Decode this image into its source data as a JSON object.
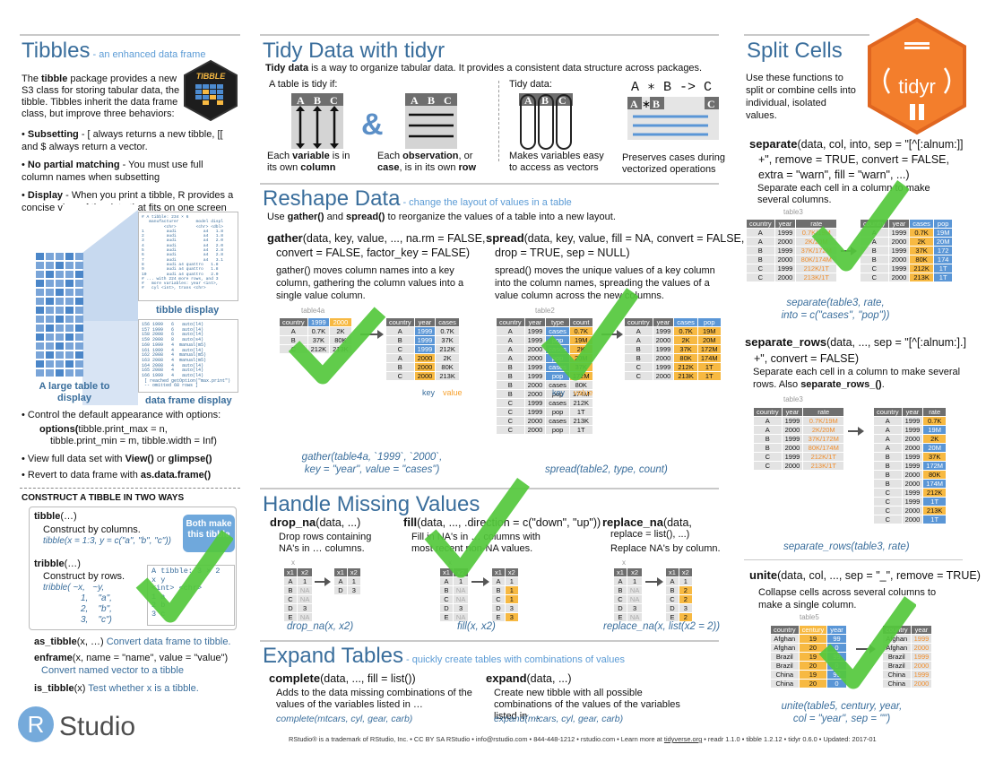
{
  "tibbles": {
    "title": "Tibbles",
    "subtitle": "- an enhanced data frame",
    "intro_a": "The ",
    "intro_b": "tibble",
    "intro_c": " package provides a new S3 class for storing tabular data, the tibble. Tibbles inherit the data frame class, but improve three behaviors:",
    "logo_text": "TIBBLE",
    "b1_head": "Subsetting",
    "b1_text": " - [ always returns a new tibble, [[ and $ always return a vector.",
    "b2_head": "No partial matching",
    "b2_text": " - You must use full column names when subsetting",
    "b3_head": "Display",
    "b3_text": " - When you print a tibble, R provides a concise view of the data that fits on one screen",
    "large_table": "A large table to display",
    "tibble_display": "tibble display",
    "df_display": "data frame display",
    "tibble_print": "# A tibble: 234 × 6\n   manufacturer       model displ\n         <chr>        <chr> <dbl>\n1         audi           a4   1.8\n2         audi           a4   1.8\n3         audi           a4   2.0\n4         audi           a4   2.0\n5         audi           a4   2.8\n6         audi           a4   2.8\n7         audi           a4   3.1\n8         audi a4 quattro   1.8\n9         audi a4 quattro   1.8\n10        audi a4 quattro   2.0\n# ... with 224 more rows, and 3\n#   more variables: year <int>,\n#   cyl <int>, trans <chr>",
    "df_print": "156 1999   6   auto(l4)\n157 1999   6   auto(l4)\n158 2008   6   auto(l4)\n159 2008   8   auto(s4)\n160 1999   4  manual(m5)\n161 1999   4   auto(l4)\n162 2008   4  manual(m5)\n163 2008   4  manual(m5)\n164 2008   4   auto(l4)\n165 2008   4   auto(l4)\n166 1999   4   auto(l4)\n [ reached getOption(\"max.print\")\n -- omitted 68 rows ]",
    "opt_text": "Control the default appearance with options:",
    "opt_code_a": "options(",
    "opt_code_b": "tibble.print_max = n,",
    "opt_code_c": "tibble.print_min = m, tibble.width = Inf)",
    "view_a": "View full data set with ",
    "view_b": "View()",
    "view_c": " or ",
    "view_d": "glimpse()",
    "revert_a": "Revert to data frame with ",
    "revert_b": "as.data.frame()"
  },
  "construct": {
    "title": "CONSTRUCT A TIBBLE IN TWO WAYS",
    "tibble_fn": "tibble",
    "tibble_args": "(…)",
    "tibble_desc": "Construct by columns.",
    "tibble_ex": "tibble(x = 1:3, y = c(\"a\", \"b\", \"c\"))",
    "tribble_fn": "tribble",
    "tribble_args": "(…)",
    "tribble_desc": "Construct by rows.",
    "tribble_ex1": "tribble( ~x,   ~y,",
    "tribble_ex2": "1,    \"a\",",
    "tribble_ex3": "2,    \"b\",",
    "tribble_ex4": "3,    \"c\")",
    "both_label": "Both make this tibble",
    "out1": "A tibble: 3 × 2",
    "out2": "x     y",
    "out3": "<int> <chr>",
    "out4": "1     a",
    "out5": "2     b",
    "out6": "3     c",
    "as_tibble_fn": "as_tibble",
    "as_tibble_args": "(x, …)",
    "as_tibble_desc": " Convert data frame to tibble.",
    "enframe_fn": "enframe",
    "enframe_args": "(x, name = \"name\", value = \"value\")",
    "enframe_desc": "Convert named vector to a tibble",
    "is_tibble_fn": "is_tibble",
    "is_tibble_args": "(x)",
    "is_tibble_desc": " Test whether x is a tibble.",
    "rstudio": "Studio",
    "rstudio_r": "R"
  },
  "tidy": {
    "title": "Tidy Data with tidyr",
    "intro_b": "Tidy data",
    "intro_rest": " is a way to organize tabular data. It provides a consistent data structure across packages.",
    "tidy_if": "A table is tidy if:",
    "tidy_data": "Tidy data:",
    "formula": "A ∗ B -> C",
    "col_a": "A",
    "col_b": "B",
    "col_c": "C",
    "amp": "&",
    "c1a": "Each ",
    "c1b": "variable",
    "c1c": " is in its own ",
    "c1d": "column",
    "c2a": "Each ",
    "c2b": "observation",
    "c2c": ", or ",
    "c2d": "case",
    "c2e": ", is in its own ",
    "c2f": "row",
    "c3": "Makes variables easy to access as vectors",
    "c4": "Preserves cases during vectorized operations"
  },
  "reshape": {
    "title": "Reshape Data",
    "subtitle": "- change the layout of values in a table",
    "use_a": "Use ",
    "use_b": "gather()",
    "use_c": " and ",
    "use_d": "spread()",
    "use_e": " to reorganize the values of a table into a new layout.",
    "gather_sig1": "(data, key, value, ..., na.rm = FALSE,",
    "gather_sig2": "convert = FALSE, factor_key = FALSE)",
    "gather_name": "gather",
    "gather_desc": "gather() moves column names into a key column, gathering the column values into a single value column.",
    "spread_name": "spread",
    "spread_sig1": "(data, key, value, fill = NA, convert = FALSE,",
    "spread_sig2": "drop = TRUE, sep = NULL)",
    "spread_desc": "spread() moves the unique values of a key column into the column names, spreading the values of a value column across the new columns.",
    "gather_ex1": "gather(table4a, `1999`, `2000`,",
    "gather_ex2": "key = \"year\", value = \"cases\")",
    "spread_ex": "spread(table2, type, count)",
    "table4a": "table4a",
    "table2": "table2",
    "key_label": "key",
    "value_label": "value"
  },
  "missing": {
    "title": "Handle Missing Values",
    "drop_name": "drop_na",
    "drop_args": "(data, ...)",
    "drop_desc": "Drop rows containing NA's in … columns.",
    "drop_ex": "drop_na(x, x2)",
    "fill_name": "fill",
    "fill_args": "(data, ..., .direction = c(\"down\", \"up\"))",
    "fill_desc": "Fill in NA's in … columns with most recent non-NA values.",
    "fill_ex": "fill(x, x2)",
    "replace_name": "replace_na",
    "replace_args1": "(data,",
    "replace_args2": "replace = list(), ...)",
    "replace_desc": "Replace NA's by column.",
    "replace_ex": "replace_na(x, list(x2 = 2))",
    "x_label": "x"
  },
  "expand": {
    "title": "Expand Tables",
    "subtitle": "- quickly create tables with combinations of values",
    "complete_name": "complete",
    "complete_args": "(data, ..., fill = list())",
    "complete_desc": "Adds to the data missing combinations of the values of the variables listed in …",
    "complete_ex": "complete(mtcars, cyl, gear, carb)",
    "expand_name": "expand",
    "expand_args": "(data, ...)",
    "expand_desc": "Create new tibble with all possible combinations of the values of the variables listed in …",
    "expand_ex": "expand(mtcars, cyl, gear, carb)"
  },
  "split": {
    "title": "Split Cells",
    "intro": "Use these functions to split or combine cells into individual, isolated values.",
    "logo": "tidyr",
    "sep_name": "separate",
    "sep_args1": "(data, col, into,  sep = \"[^[:alnum:]]",
    "sep_args2": "+\", remove = TRUE, convert = FALSE,",
    "sep_args3": "extra = \"warn\", fill = \"warn\", ...)",
    "sep_desc": "Separate each cell in a column to make several columns.",
    "sep_ex1": "separate(table3, rate,",
    "sep_ex2": "into = c(\"cases\", \"pop\"))",
    "seprows_name": "separate_rows",
    "seprows_args1": "(data, ..., sep = \"[^[:alnum:].]",
    "seprows_args2": "+\", convert = FALSE)",
    "seprows_desc_a": "Separate each cell in a column to make several rows. Also ",
    "seprows_desc_b": "separate_rows_()",
    "seprows_desc_c": ".",
    "seprows_ex": "separate_rows(table3, rate)",
    "unite_name": "unite",
    "unite_args": "(data, col, ..., sep = \"_\", remove = TRUE)",
    "unite_desc": "Collapse cells across several columns to make a single column.",
    "unite_ex1": "unite(table5, century, year,",
    "unite_ex2": "col = \"year\", sep = \"\")",
    "table3": "table3",
    "table5": "table5"
  },
  "footer": {
    "text": "RStudio® is a trademark of RStudio, Inc.  •  CC BY SA RStudio •  info@rstudio.com  •  844-448-1212 • rstudio.com •  Learn more at ",
    "link": "tidyverse.org",
    "text2": "  •  readr  1.1.0 •  tibble  1.2.12 •  tidyr  0.6.0 •  Updated: 2017-01"
  },
  "colors": {
    "accent": "#3a6e9c",
    "orange": "#f7b942",
    "blue": "#5a96d6",
    "check": "#54c83c"
  }
}
